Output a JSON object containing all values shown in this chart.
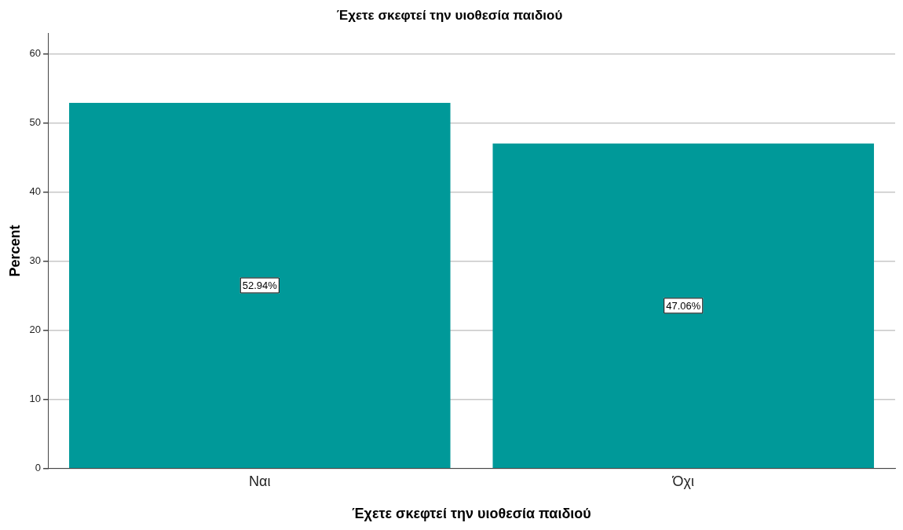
{
  "chart_data": {
    "type": "bar",
    "title": "Έχετε σκεφτεί την υιοθεσία παιδιού",
    "xlabel": "Έχετε σκεφτεί την υιοθεσία παιδιού",
    "ylabel": "Percent",
    "categories": [
      "Ναι",
      "Όχι"
    ],
    "values": [
      52.94,
      47.06
    ],
    "value_labels": [
      "52.94%",
      "47.06%"
    ],
    "color": "#009999",
    "ylim": [
      0,
      63
    ],
    "yticks": [
      0,
      10,
      20,
      30,
      40,
      50,
      60
    ],
    "grid": "y"
  }
}
